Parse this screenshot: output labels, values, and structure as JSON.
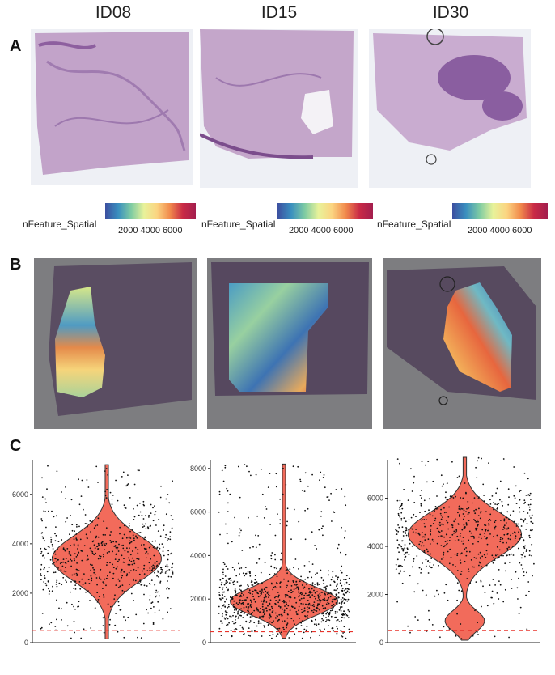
{
  "panels": {
    "a": "A",
    "b": "B",
    "c": "C"
  },
  "columns": [
    "ID08",
    "ID15",
    "ID30"
  ],
  "legend": {
    "title": "nFeature_Spatial",
    "ticks_1": "2000   4000   6000",
    "ticks_2": "2000 4000 6000",
    "ticks_3": "2000   4000   6000"
  },
  "colors": {
    "violin_fill": "#f26b5b",
    "threshold_line": "#e8332b",
    "dots": "#111111"
  },
  "chart_data": [
    {
      "type": "violin",
      "name": "ID08",
      "yticks": [
        "0",
        "2000",
        "4000",
        "6000"
      ],
      "ylim": [
        0,
        7400
      ],
      "threshold": 500,
      "median": 3400,
      "max": 7200,
      "min": 150
    },
    {
      "type": "violin",
      "name": "ID15",
      "yticks": [
        "0",
        "2000",
        "4000",
        "6000",
        "8000"
      ],
      "ylim": [
        0,
        8400
      ],
      "threshold": 500,
      "median": 1900,
      "max": 8200,
      "min": 200
    },
    {
      "type": "violin",
      "name": "ID30",
      "yticks": [
        "0",
        "2000",
        "4000",
        "6000"
      ],
      "ylim": [
        0,
        7600
      ],
      "threshold": 500,
      "median": 4500,
      "max": 7700,
      "min": 100
    }
  ]
}
